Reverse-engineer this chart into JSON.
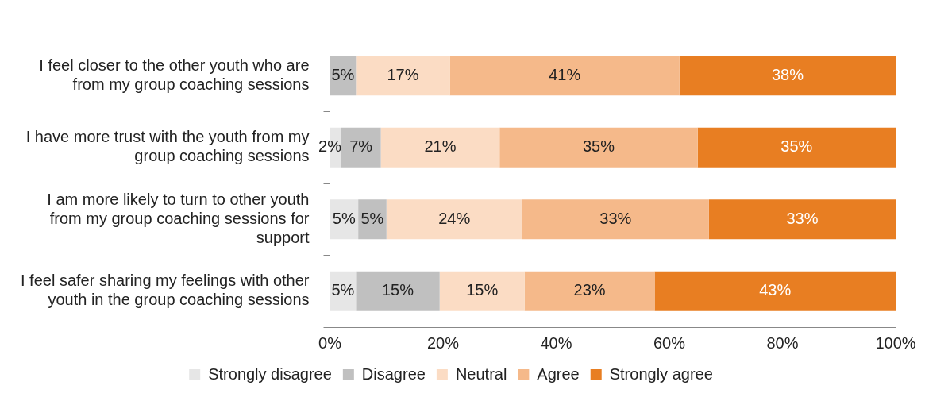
{
  "chart_data": {
    "type": "bar",
    "orientation": "horizontal",
    "stacked": true,
    "legend": "bottom",
    "categories": [
      "I feel closer to the other youth who are from my group coaching sessions",
      "I have more trust with the youth from my group coaching sessions",
      "I am more likely to turn to other youth from my group coaching sessions for support",
      "I feel safer sharing my feelings with other youth in the group coaching sessions"
    ],
    "series": [
      {
        "name": "Strongly disagree",
        "color": "#e6e6e6",
        "values": [
          0,
          2,
          5,
          4.6
        ],
        "value_labels": [
          null,
          "2%",
          "5%",
          "5%"
        ]
      },
      {
        "name": "Disagree",
        "color": "#c0c0c0",
        "values": [
          4.6,
          7,
          5,
          14.8
        ],
        "value_labels": [
          "5%",
          "7%",
          "5%",
          "15%"
        ]
      },
      {
        "name": "Neutral",
        "color": "#fbdcc4",
        "values": [
          16.6,
          21,
          24,
          15
        ],
        "value_labels": [
          "17%",
          "21%",
          "24%",
          "15%"
        ]
      },
      {
        "name": "Agree",
        "color": "#f5b98a",
        "values": [
          40.6,
          35,
          33,
          23
        ],
        "value_labels": [
          "41%",
          "35%",
          "33%",
          "23%"
        ]
      },
      {
        "name": "Strongly agree",
        "color": "#e87e22",
        "values": [
          38.2,
          35,
          33,
          42.6
        ],
        "value_labels": [
          "38%",
          "35%",
          "33%",
          "43%"
        ]
      }
    ],
    "xlim": [
      0,
      100
    ],
    "xticks": [
      {
        "value": 0,
        "label": "0%"
      },
      {
        "value": 20,
        "label": "20%"
      },
      {
        "value": 40,
        "label": "40%"
      },
      {
        "value": 60,
        "label": "60%"
      },
      {
        "value": 80,
        "label": "80%"
      },
      {
        "value": 100,
        "label": "100%"
      }
    ]
  }
}
